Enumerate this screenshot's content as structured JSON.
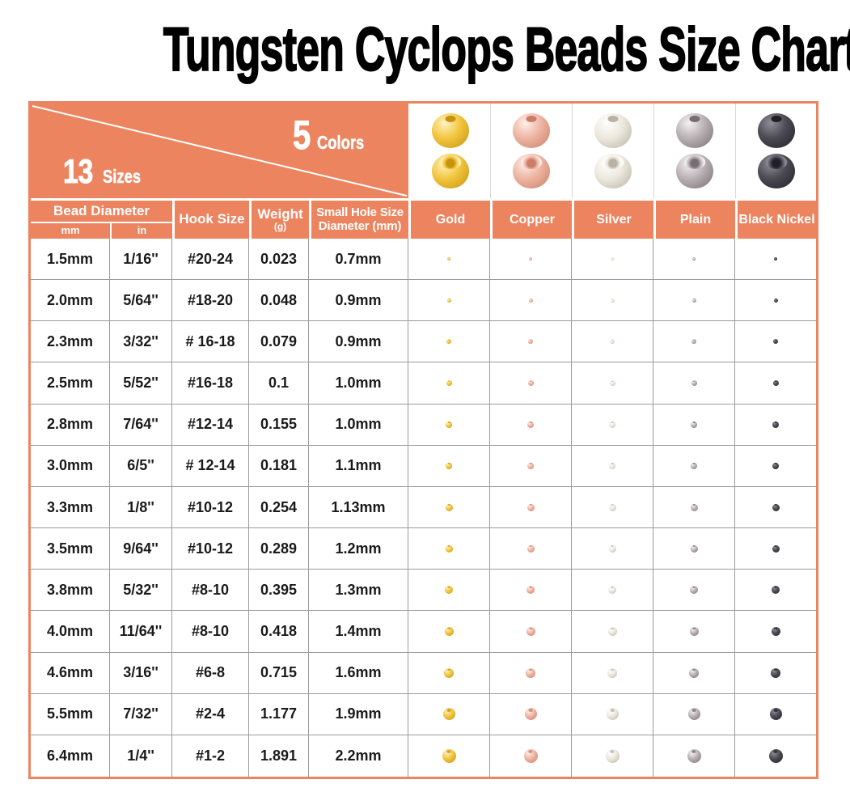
{
  "title": "Tungsten Cyclops Beads Size Chart",
  "banner": {
    "sizes_count": "13",
    "sizes_label": "Sizes",
    "colors_count": "5",
    "colors_label": "Colors"
  },
  "table": {
    "headers": {
      "bead_diameter": "Bead Diameter",
      "mm": "mm",
      "in": "in",
      "hook_size": "Hook Size",
      "weight": "Weight",
      "weight_unit": "(g)",
      "small_hole_line1": "Small Hole Size",
      "small_hole_line2": "Diameter (mm)"
    },
    "color_columns": [
      {
        "label": "Gold",
        "hi": "#fff3c2",
        "mid": "#f2c53e",
        "dark": "#c6920f"
      },
      {
        "label": "Copper",
        "hi": "#ffefe8",
        "mid": "#edb4a2",
        "dark": "#c97e65"
      },
      {
        "label": "Silver",
        "hi": "#ffffff",
        "mid": "#ece8dd",
        "dark": "#b8b2a4"
      },
      {
        "label": "Plain",
        "hi": "#f4f2f3",
        "mid": "#b9b0b4",
        "dark": "#776e73"
      },
      {
        "label": "Black Nickel",
        "hi": "#908e98",
        "mid": "#4b4952",
        "dark": "#211f26"
      }
    ],
    "rows": [
      {
        "mm": "1.5mm",
        "in": "1/16''",
        "hook": "#20-24",
        "weight": "0.023",
        "hole": "0.7mm",
        "dot": 4
      },
      {
        "mm": "2.0mm",
        "in": "5/64''",
        "hook": "#18-20",
        "weight": "0.048",
        "hole": "0.9mm",
        "dot": 5
      },
      {
        "mm": "2.3mm",
        "in": "3/32''",
        "hook": "# 16-18",
        "weight": "0.079",
        "hole": "0.9mm",
        "dot": 6
      },
      {
        "mm": "2.5mm",
        "in": "5/52''",
        "hook": "#16-18",
        "weight": "0.1",
        "hole": "1.0mm",
        "dot": 7
      },
      {
        "mm": "2.8mm",
        "in": "7/64''",
        "hook": "#12-14",
        "weight": "0.155",
        "hole": "1.0mm",
        "dot": 8
      },
      {
        "mm": "3.0mm",
        "in": "6/5''",
        "hook": "# 12-14",
        "weight": "0.181",
        "hole": "1.1mm",
        "dot": 8
      },
      {
        "mm": "3.3mm",
        "in": "1/8''",
        "hook": "#10-12",
        "weight": "0.254",
        "hole": "1.13mm",
        "dot": 9
      },
      {
        "mm": "3.5mm",
        "in": "9/64''",
        "hook": "#10-12",
        "weight": "0.289",
        "hole": "1.2mm",
        "dot": 9
      },
      {
        "mm": "3.8mm",
        "in": "5/32''",
        "hook": "#8-10",
        "weight": "0.395",
        "hole": "1.3mm",
        "dot": 10
      },
      {
        "mm": "4.0mm",
        "in": "11/64''",
        "hook": "#8-10",
        "weight": "0.418",
        "hole": "1.4mm",
        "dot": 11
      },
      {
        "mm": "4.6mm",
        "in": "3/16''",
        "hook": "#6-8",
        "weight": "0.715",
        "hole": "1.6mm",
        "dot": 12
      },
      {
        "mm": "5.5mm",
        "in": "7/32''",
        "hook": "#2-4",
        "weight": "1.177",
        "hole": "1.9mm",
        "dot": 15
      },
      {
        "mm": "6.4mm",
        "in": "1/4''",
        "hook": "#1-2",
        "weight": "1.891",
        "hole": "2.2mm",
        "dot": 17
      }
    ]
  },
  "colors": {
    "accent": "#EC8460",
    "grid_line": "#9b9b9b",
    "header_text": "#ffffff",
    "data_text": "#1a1a1a",
    "title_text": "#000000"
  },
  "chart_data": {
    "type": "table",
    "title": "Tungsten Cyclops Beads Size Chart",
    "sizes_count": 13,
    "colors_count": 5,
    "color_options": [
      "Gold",
      "Copper",
      "Silver",
      "Plain",
      "Black Nickel"
    ],
    "columns": [
      "Bead Diameter (mm)",
      "Bead Diameter (in)",
      "Hook Size",
      "Weight (g)",
      "Small Hole Size Diameter (mm)"
    ],
    "rows": [
      [
        "1.5mm",
        "1/16''",
        "#20-24",
        "0.023",
        "0.7mm"
      ],
      [
        "2.0mm",
        "5/64''",
        "#18-20",
        "0.048",
        "0.9mm"
      ],
      [
        "2.3mm",
        "3/32''",
        "# 16-18",
        "0.079",
        "0.9mm"
      ],
      [
        "2.5mm",
        "5/52''",
        "#16-18",
        "0.1",
        "1.0mm"
      ],
      [
        "2.8mm",
        "7/64''",
        "#12-14",
        "0.155",
        "1.0mm"
      ],
      [
        "3.0mm",
        "6/5''",
        "# 12-14",
        "0.181",
        "1.1mm"
      ],
      [
        "3.3mm",
        "1/8''",
        "#10-12",
        "0.254",
        "1.13mm"
      ],
      [
        "3.5mm",
        "9/64''",
        "#10-12",
        "0.289",
        "1.2mm"
      ],
      [
        "3.8mm",
        "5/32''",
        "#8-10",
        "0.395",
        "1.3mm"
      ],
      [
        "4.0mm",
        "11/64''",
        "#8-10",
        "0.418",
        "1.4mm"
      ],
      [
        "4.6mm",
        "3/16''",
        "#6-8",
        "0.715",
        "1.6mm"
      ],
      [
        "5.5mm",
        "7/32''",
        "#2-4",
        "1.177",
        "1.9mm"
      ],
      [
        "6.4mm",
        "1/4''",
        "#1-2",
        "1.891",
        "2.2mm"
      ]
    ]
  }
}
